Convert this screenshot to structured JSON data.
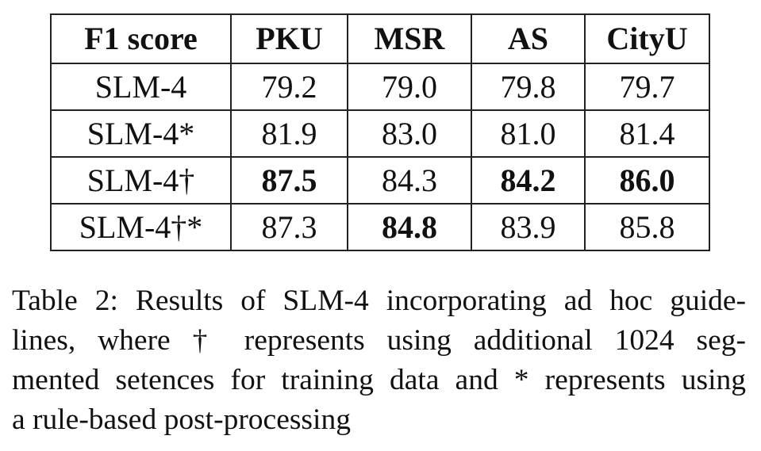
{
  "table": {
    "header": [
      "F1 score",
      "PKU",
      "MSR",
      "AS",
      "CityU"
    ],
    "rows": [
      [
        {
          "text": "SLM-4",
          "bold": false
        },
        {
          "text": "79.2",
          "bold": false
        },
        {
          "text": "79.0",
          "bold": false
        },
        {
          "text": "79.8",
          "bold": false
        },
        {
          "text": "79.7",
          "bold": false
        }
      ],
      [
        {
          "text": "SLM-4*",
          "bold": false
        },
        {
          "text": "81.9",
          "bold": false
        },
        {
          "text": "83.0",
          "bold": false
        },
        {
          "text": "81.0",
          "bold": false
        },
        {
          "text": "81.4",
          "bold": false
        }
      ],
      [
        {
          "text": "SLM-4†",
          "bold": false
        },
        {
          "text": "87.5",
          "bold": true
        },
        {
          "text": "84.3",
          "bold": false
        },
        {
          "text": "84.2",
          "bold": true
        },
        {
          "text": "86.0",
          "bold": true
        }
      ],
      [
        {
          "text": "SLM-4†*",
          "bold": false
        },
        {
          "text": "87.3",
          "bold": false
        },
        {
          "text": "84.8",
          "bold": true
        },
        {
          "text": "83.9",
          "bold": false
        },
        {
          "text": "85.8",
          "bold": false
        }
      ]
    ]
  },
  "caption": {
    "lines": [
      "Table 2: Results of SLM-4 incorporating ad hoc guide-",
      "lines, where † represents using additional 1024 seg-",
      "mented setences for training data and * represents using",
      "a rule-based post-processing"
    ]
  }
}
